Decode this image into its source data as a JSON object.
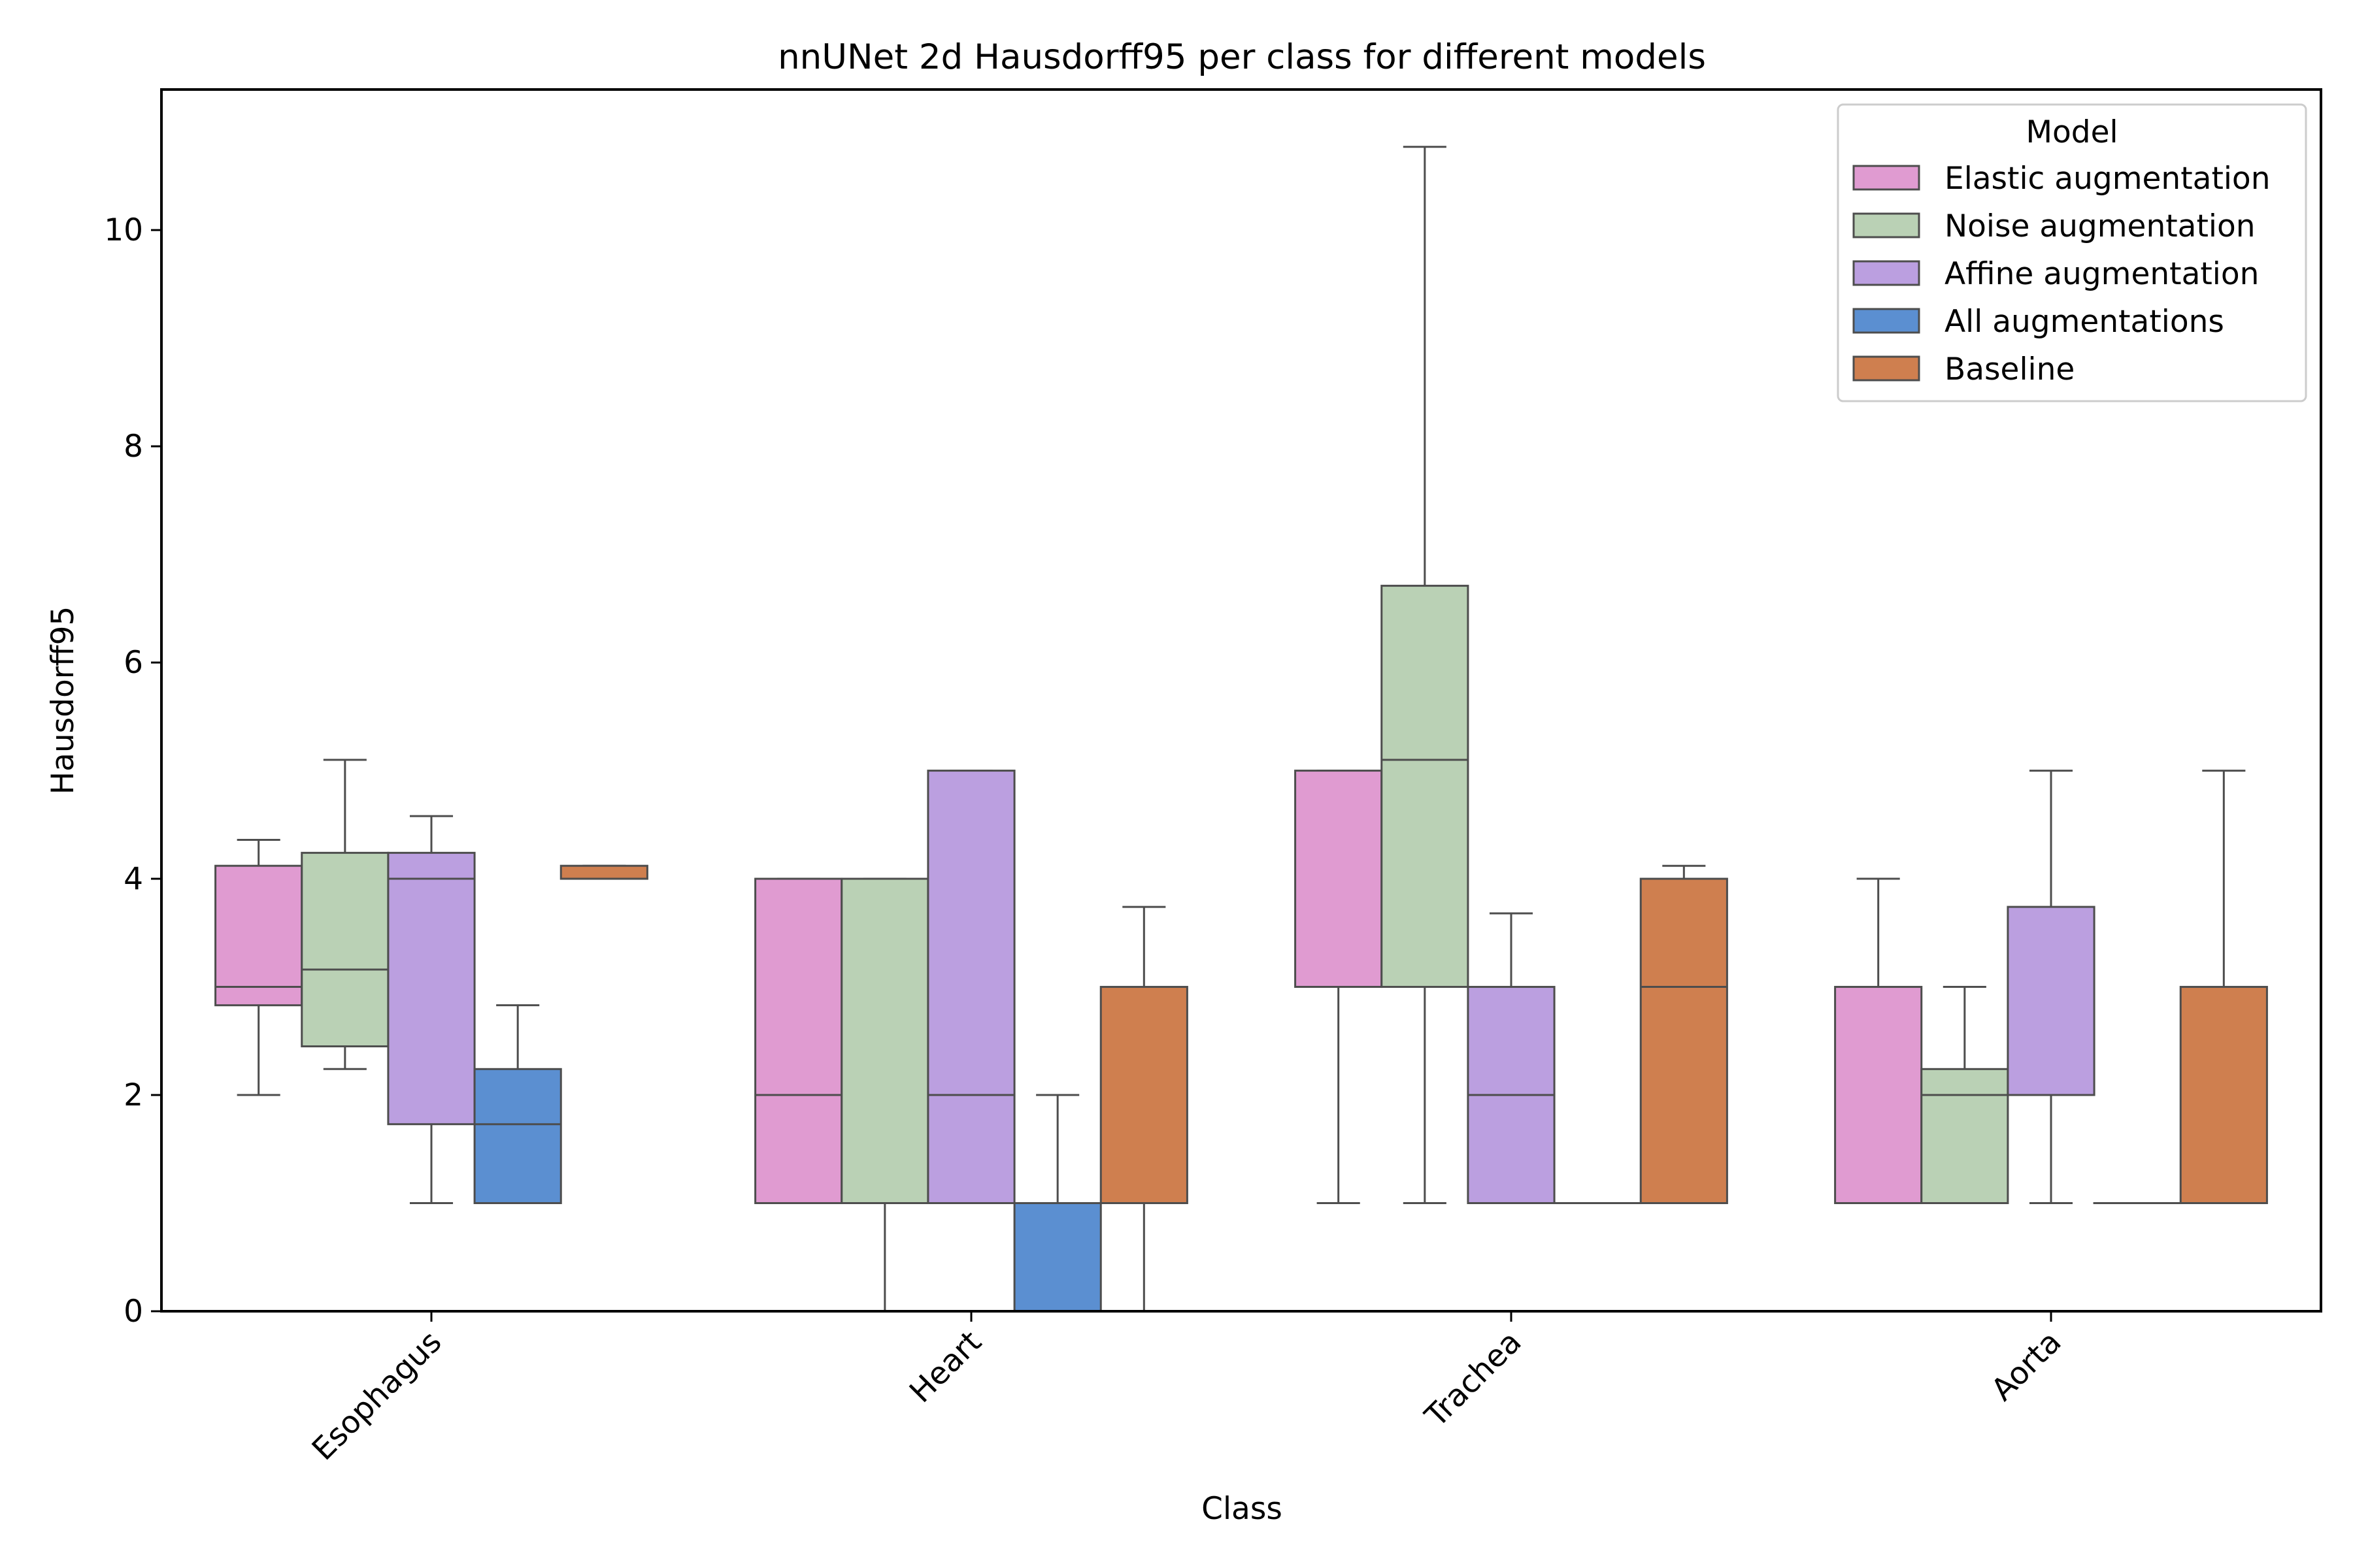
{
  "chart_data": {
    "type": "box",
    "title": "nnUNet 2d Hausdorff95 per class for different models",
    "xlabel": "Class",
    "ylabel": "Hausdorff95",
    "ylim": [
      0,
      11.3
    ],
    "yticks": [
      "0",
      "2",
      "4",
      "6",
      "8",
      "10"
    ],
    "categories": [
      "Esophagus",
      "Heart",
      "Trachea",
      "Aorta"
    ],
    "legend": {
      "title": "Model",
      "placement": "top-right"
    },
    "series": [
      {
        "name": "Elastic augmentation",
        "color": "#e09bd1",
        "boxes": [
          {
            "whisker_low": 2.0,
            "q1": 2.83,
            "median": 3.0,
            "q3": 4.12,
            "whisker_high": 4.36
          },
          {
            "whisker_low": 1.0,
            "q1": 1.0,
            "median": 2.0,
            "q3": 4.0,
            "whisker_high": 4.0
          },
          {
            "whisker_low": 1.0,
            "q1": 3.0,
            "median": 3.0,
            "q3": 5.0,
            "whisker_high": 5.0
          },
          {
            "whisker_low": 1.0,
            "q1": 1.0,
            "median": 1.0,
            "q3": 3.0,
            "whisker_high": 4.0
          }
        ]
      },
      {
        "name": "Noise augmentation",
        "color": "#bad1b5",
        "boxes": [
          {
            "whisker_low": 2.24,
            "q1": 2.45,
            "median": 3.16,
            "q3": 4.24,
            "whisker_high": 5.1
          },
          {
            "whisker_low": 0.0,
            "q1": 1.0,
            "median": 1.0,
            "q3": 4.0,
            "whisker_high": 4.0
          },
          {
            "whisker_low": 1.0,
            "q1": 3.0,
            "median": 5.1,
            "q3": 6.71,
            "whisker_high": 10.77
          },
          {
            "whisker_low": 1.0,
            "q1": 1.0,
            "median": 2.0,
            "q3": 2.24,
            "whisker_high": 3.0
          }
        ]
      },
      {
        "name": "Affine augmentation",
        "color": "#bb9fe0",
        "boxes": [
          {
            "whisker_low": 1.0,
            "q1": 1.73,
            "median": 4.0,
            "q3": 4.24,
            "whisker_high": 4.58
          },
          {
            "whisker_low": 1.0,
            "q1": 1.0,
            "median": 2.0,
            "q3": 5.0,
            "whisker_high": 5.0
          },
          {
            "whisker_low": 1.0,
            "q1": 1.0,
            "median": 2.0,
            "q3": 3.0,
            "whisker_high": 3.68
          },
          {
            "whisker_low": 1.0,
            "q1": 2.0,
            "median": 2.0,
            "q3": 3.74,
            "whisker_high": 5.0
          }
        ]
      },
      {
        "name": "All augmentations",
        "color": "#5b8fd1",
        "boxes": [
          {
            "whisker_low": 1.0,
            "q1": 1.0,
            "median": 1.73,
            "q3": 2.24,
            "whisker_high": 2.83
          },
          {
            "whisker_low": 0.0,
            "q1": 0.0,
            "median": 1.0,
            "q3": 1.0,
            "whisker_high": 2.0
          },
          {
            "whisker_low": 1.0,
            "q1": 1.0,
            "median": 1.0,
            "q3": 1.0,
            "whisker_high": 1.0
          },
          {
            "whisker_low": 1.0,
            "q1": 1.0,
            "median": 1.0,
            "q3": 1.0,
            "whisker_high": 1.0
          }
        ]
      },
      {
        "name": "Baseline",
        "color": "#cf7f4f",
        "boxes": [
          {
            "whisker_low": 4.0,
            "q1": 4.0,
            "median": 4.0,
            "q3": 4.12,
            "whisker_high": 4.12
          },
          {
            "whisker_low": 0.0,
            "q1": 1.0,
            "median": 1.0,
            "q3": 3.0,
            "whisker_high": 3.74
          },
          {
            "whisker_low": 1.0,
            "q1": 1.0,
            "median": 3.0,
            "q3": 4.0,
            "whisker_high": 4.12
          },
          {
            "whisker_low": 1.0,
            "q1": 1.0,
            "median": 1.0,
            "q3": 3.0,
            "whisker_high": 5.0
          }
        ]
      }
    ]
  }
}
